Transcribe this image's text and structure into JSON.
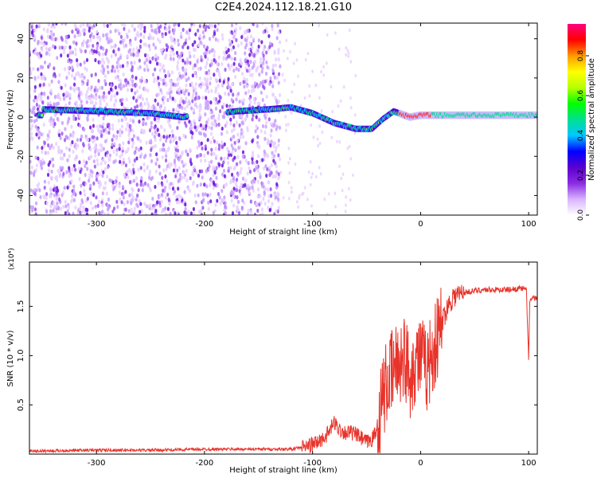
{
  "title": "C2E4.2024.112.18.21.G10",
  "chart_data": [
    {
      "type": "heatmap",
      "title": "C2E4.2024.112.18.21.G10",
      "xlabel": "Height of straight line (km)",
      "ylabel": "Frequency (Hz)",
      "xlim": [
        -362,
        108
      ],
      "ylim": [
        -50,
        48
      ],
      "xticks": [
        -300,
        -200,
        -100,
        0,
        100
      ],
      "yticks": [
        -40,
        -20,
        0,
        20,
        40
      ],
      "colorbar": {
        "label": "Normalized spectral amplitude",
        "range": [
          0.0,
          0.96
        ],
        "ticks": [
          "0.0",
          "0.2",
          "0.4",
          "0.6",
          "0.8"
        ],
        "colors": [
          "#ffffff",
          "#d9b3ff",
          "#8a2be2",
          "#5a00d0",
          "#0000ff",
          "#00c8ff",
          "#00e090",
          "#00ff00",
          "#b8ff00",
          "#ffff00",
          "#ff9900",
          "#ff0000",
          "#ff0080"
        ]
      },
      "ridge": {
        "x": [
          -350,
          -300,
          -250,
          -220,
          -170,
          -140,
          -120,
          -100,
          -80,
          -60,
          -45,
          -35,
          -25,
          -15,
          -10,
          0,
          10,
          50,
          100,
          108
        ],
        "y": [
          4,
          3,
          2,
          0,
          3,
          4,
          5,
          2,
          -3,
          -6,
          -6,
          -1,
          3,
          1,
          0,
          1,
          1,
          1,
          1,
          1
        ]
      },
      "noise_region_x": [
        -362,
        -130
      ],
      "grid": false
    },
    {
      "type": "line",
      "xlabel": "Height of straight line (km)",
      "ylabel": "SNR (10 * v/v)",
      "y_multiplier": "(x10⁴)",
      "xlim": [
        -362,
        108
      ],
      "ylim": [
        0,
        1.95
      ],
      "xticks": [
        -300,
        -200,
        -100,
        0,
        100
      ],
      "yticks": [
        0.5,
        1.0,
        1.5
      ],
      "ytick_labels": [
        "0.5",
        "1.0",
        "1.5"
      ],
      "color": "#e8332a",
      "series": [
        {
          "x": [
            -362,
            -300,
            -250,
            -200,
            -150,
            -120,
            -105,
            -95,
            -90,
            -85,
            -80,
            -75,
            -70,
            -65,
            -60,
            -55,
            -50,
            -45,
            -40,
            -35,
            -30,
            -25,
            -20,
            -15,
            -10,
            -5,
            0,
            5,
            10,
            15,
            20,
            25,
            30,
            40,
            50,
            60,
            70,
            80,
            90,
            95,
            98,
            100,
            101,
            103,
            108
          ],
          "y": [
            0.03,
            0.04,
            0.04,
            0.05,
            0.05,
            0.05,
            0.08,
            0.12,
            0.16,
            0.22,
            0.32,
            0.25,
            0.22,
            0.22,
            0.2,
            0.16,
            0.12,
            0.15,
            0.25,
            0.6,
            0.75,
            0.85,
            0.95,
            1.0,
            0.8,
            0.95,
            1.0,
            0.85,
            1.0,
            1.15,
            1.35,
            1.5,
            1.6,
            1.64,
            1.66,
            1.67,
            1.67,
            1.67,
            1.68,
            1.68,
            1.66,
            0.95,
            1.55,
            1.58,
            1.58
          ]
        }
      ],
      "grid": false
    }
  ]
}
